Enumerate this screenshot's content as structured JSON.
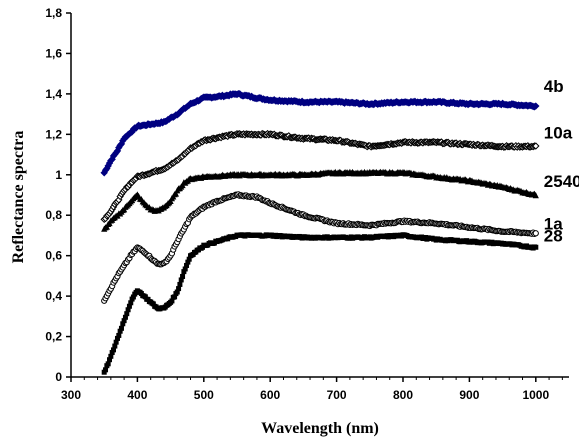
{
  "chart_data": {
    "type": "scatter",
    "xlabel": "Wavelength (nm)",
    "ylabel": "Reflectance spectra",
    "xlim": [
      300,
      1050
    ],
    "ylim": [
      0,
      1.8
    ],
    "x_ticks": [
      "300",
      "400",
      "500",
      "600",
      "700",
      "800",
      "900",
      "1000"
    ],
    "y_ticks": [
      "0",
      "0,2",
      "0,4",
      "0,6",
      "0,8",
      "1",
      "1,2",
      "1,4",
      "1,6",
      "1,8"
    ],
    "grid": false,
    "series": [
      {
        "name": "4b",
        "color": "#000080",
        "marker": "diamond",
        "points": [
          [
            350,
            1.01
          ],
          [
            360,
            1.07
          ],
          [
            370,
            1.12
          ],
          [
            380,
            1.18
          ],
          [
            390,
            1.21
          ],
          [
            400,
            1.24
          ],
          [
            420,
            1.25
          ],
          [
            440,
            1.26
          ],
          [
            460,
            1.3
          ],
          [
            480,
            1.35
          ],
          [
            500,
            1.38
          ],
          [
            530,
            1.39
          ],
          [
            550,
            1.4
          ],
          [
            580,
            1.38
          ],
          [
            600,
            1.37
          ],
          [
            650,
            1.36
          ],
          [
            700,
            1.36
          ],
          [
            750,
            1.35
          ],
          [
            800,
            1.36
          ],
          [
            850,
            1.36
          ],
          [
            900,
            1.35
          ],
          [
            950,
            1.35
          ],
          [
            1000,
            1.34
          ]
        ]
      },
      {
        "name": "10a",
        "color": "#000000",
        "marker": "open-diamond",
        "points": [
          [
            350,
            0.78
          ],
          [
            360,
            0.82
          ],
          [
            370,
            0.87
          ],
          [
            380,
            0.92
          ],
          [
            390,
            0.96
          ],
          [
            400,
            0.99
          ],
          [
            420,
            1.01
          ],
          [
            440,
            1.03
          ],
          [
            460,
            1.07
          ],
          [
            480,
            1.13
          ],
          [
            500,
            1.17
          ],
          [
            530,
            1.19
          ],
          [
            550,
            1.2
          ],
          [
            600,
            1.2
          ],
          [
            650,
            1.18
          ],
          [
            700,
            1.17
          ],
          [
            750,
            1.14
          ],
          [
            800,
            1.16
          ],
          [
            850,
            1.16
          ],
          [
            900,
            1.15
          ],
          [
            950,
            1.14
          ],
          [
            1000,
            1.14
          ]
        ]
      },
      {
        "name": "2540",
        "color": "#000000",
        "marker": "triangle",
        "points": [
          [
            350,
            0.73
          ],
          [
            360,
            0.77
          ],
          [
            370,
            0.8
          ],
          [
            380,
            0.83
          ],
          [
            390,
            0.87
          ],
          [
            400,
            0.9
          ],
          [
            410,
            0.86
          ],
          [
            420,
            0.83
          ],
          [
            430,
            0.82
          ],
          [
            440,
            0.84
          ],
          [
            450,
            0.87
          ],
          [
            460,
            0.92
          ],
          [
            470,
            0.96
          ],
          [
            480,
            0.98
          ],
          [
            500,
            0.99
          ],
          [
            550,
            1.0
          ],
          [
            600,
            1.0
          ],
          [
            650,
            1.0
          ],
          [
            700,
            1.01
          ],
          [
            750,
            1.01
          ],
          [
            800,
            1.01
          ],
          [
            850,
            0.99
          ],
          [
            900,
            0.97
          ],
          [
            950,
            0.94
          ],
          [
            1000,
            0.9
          ]
        ]
      },
      {
        "name": "1a",
        "color": "#000000",
        "marker": "open-circle",
        "points": [
          [
            350,
            0.38
          ],
          [
            360,
            0.44
          ],
          [
            370,
            0.5
          ],
          [
            380,
            0.55
          ],
          [
            390,
            0.6
          ],
          [
            400,
            0.64
          ],
          [
            410,
            0.62
          ],
          [
            420,
            0.59
          ],
          [
            430,
            0.56
          ],
          [
            440,
            0.56
          ],
          [
            450,
            0.6
          ],
          [
            460,
            0.67
          ],
          [
            470,
            0.73
          ],
          [
            480,
            0.79
          ],
          [
            500,
            0.84
          ],
          [
            520,
            0.87
          ],
          [
            550,
            0.9
          ],
          [
            580,
            0.89
          ],
          [
            600,
            0.86
          ],
          [
            650,
            0.8
          ],
          [
            700,
            0.76
          ],
          [
            750,
            0.75
          ],
          [
            800,
            0.77
          ],
          [
            850,
            0.76
          ],
          [
            900,
            0.74
          ],
          [
            950,
            0.72
          ],
          [
            1000,
            0.71
          ]
        ]
      },
      {
        "name": "28",
        "color": "#000000",
        "marker": "square",
        "points": [
          [
            350,
            0.02
          ],
          [
            360,
            0.1
          ],
          [
            370,
            0.19
          ],
          [
            380,
            0.28
          ],
          [
            390,
            0.37
          ],
          [
            400,
            0.43
          ],
          [
            410,
            0.4
          ],
          [
            420,
            0.37
          ],
          [
            430,
            0.34
          ],
          [
            440,
            0.34
          ],
          [
            450,
            0.37
          ],
          [
            460,
            0.42
          ],
          [
            470,
            0.52
          ],
          [
            480,
            0.6
          ],
          [
            500,
            0.65
          ],
          [
            550,
            0.7
          ],
          [
            600,
            0.7
          ],
          [
            650,
            0.69
          ],
          [
            700,
            0.69
          ],
          [
            750,
            0.69
          ],
          [
            800,
            0.7
          ],
          [
            850,
            0.68
          ],
          [
            900,
            0.67
          ],
          [
            950,
            0.66
          ],
          [
            1000,
            0.64
          ]
        ]
      }
    ]
  }
}
